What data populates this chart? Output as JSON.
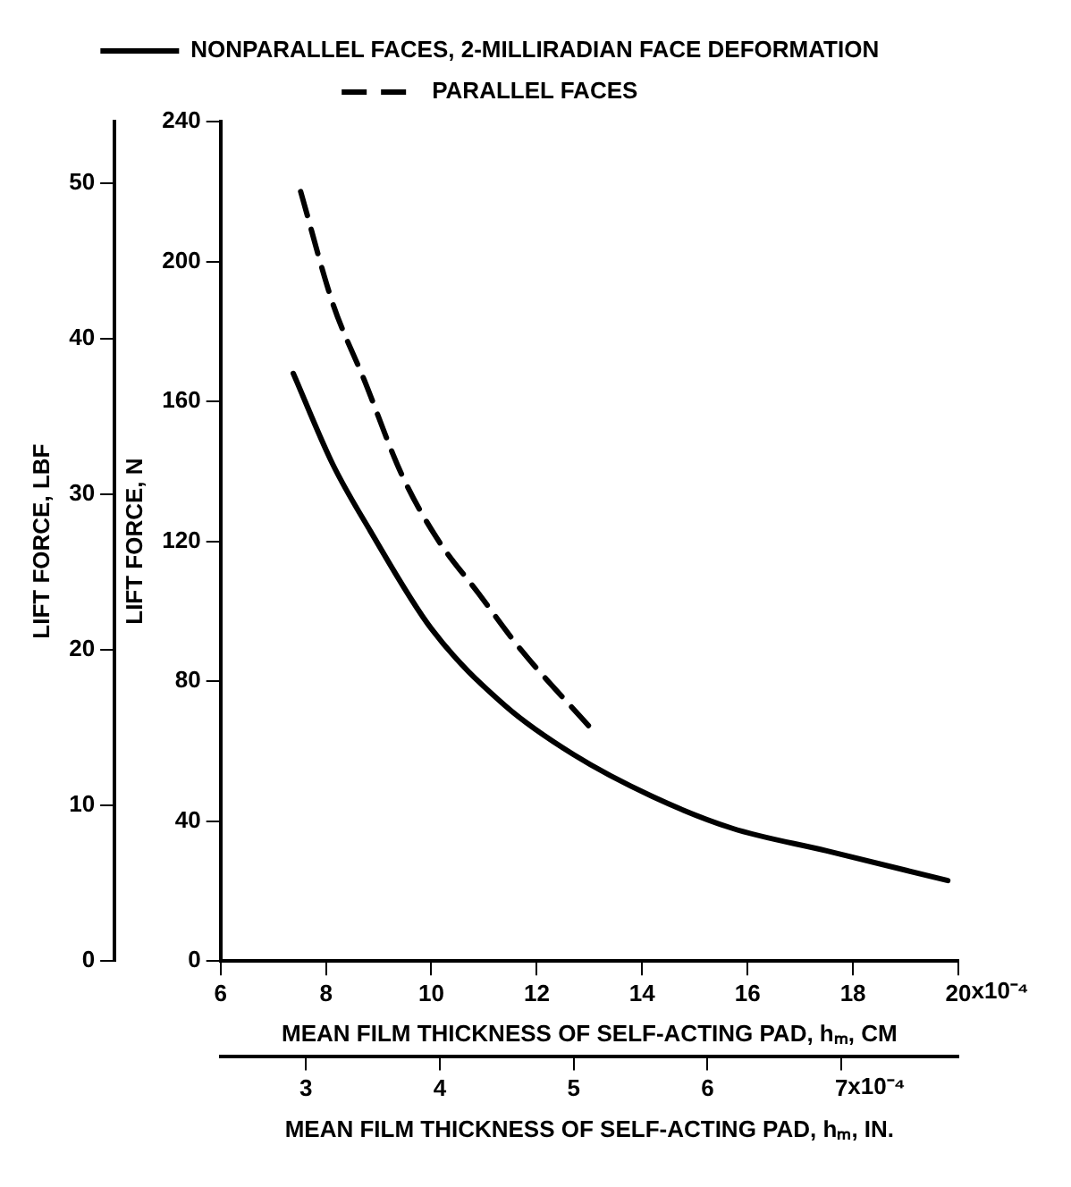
{
  "chart_data": {
    "type": "line",
    "xlabel": "MEAN FILM THICKNESS OF SELF-ACTING PAD, hₘ, CM",
    "ylabel": "LIFT FORCE, N",
    "y2label": "LIFT FORCE, LBF",
    "x2label": "MEAN FILM THICKNESS OF SELF-ACTING PAD, hₘ, IN.",
    "xlim": [
      6,
      20
    ],
    "xticks": [
      6,
      8,
      10,
      12,
      14,
      16,
      18,
      20
    ],
    "annotations": [
      "x10⁻⁴",
      "x10⁻⁴"
    ],
    "ylim": [
      0,
      240
    ],
    "yticks": [
      0,
      40,
      80,
      120,
      160,
      200,
      240
    ],
    "y2lim": [
      0,
      53.96
    ],
    "y2ticks": [
      0,
      10,
      20,
      30,
      40,
      50
    ],
    "x2lim": [
      2.362,
      7.874
    ],
    "x2ticks": [
      3,
      4,
      5,
      6,
      7
    ],
    "grid": false,
    "legend": "top",
    "marker": "none",
    "series": [
      {
        "name": "NONPARALLEL FACES, 2-MILLIRADIAN FACE DEFORMATION",
        "color": "#000000",
        "line_style": "solid",
        "x": [
          7.38,
          8.13,
          8.84,
          10.0,
          11.4,
          12.7,
          14.2,
          15.7,
          17.5,
          19.8
        ],
        "values": [
          168,
          142,
          123,
          95,
          73,
          59,
          47,
          38,
          31.5,
          23
        ]
      },
      {
        "name": "PARALLEL FACES",
        "color": "#000000",
        "line_style": "dashed",
        "x": [
          7.52,
          8.13,
          8.73,
          9.44,
          10.1,
          10.9,
          11.7,
          13.0
        ],
        "values": [
          220,
          188,
          166,
          139,
          121,
          105,
          89,
          67
        ]
      }
    ]
  }
}
